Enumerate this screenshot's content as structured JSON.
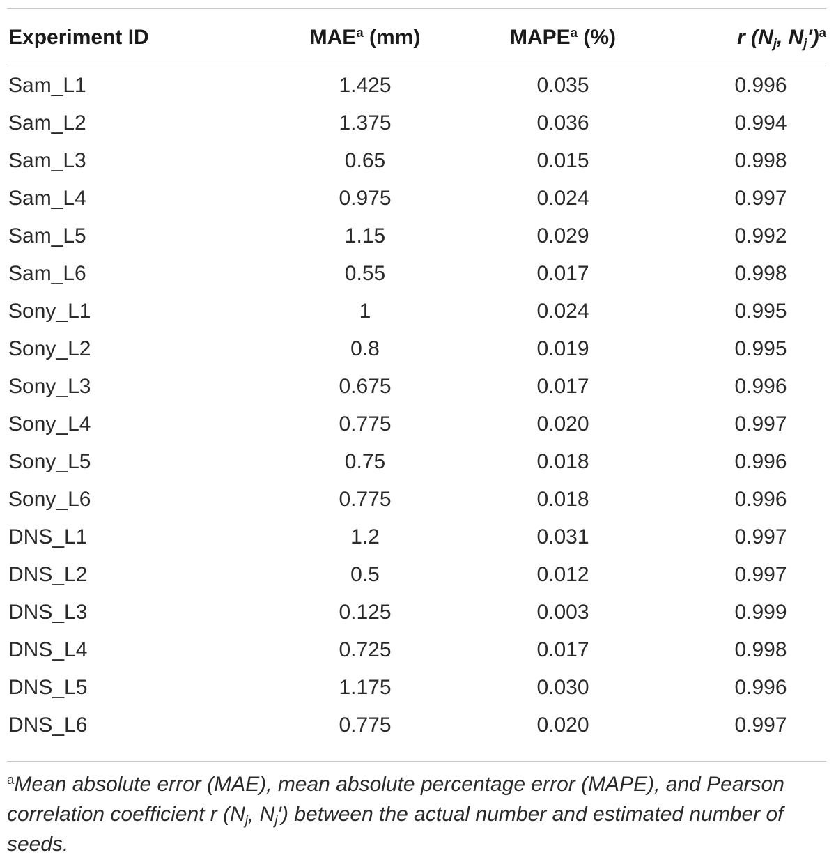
{
  "table": {
    "headers": {
      "experiment_id": "Experiment ID",
      "mae_base": "MAE",
      "mae_sup": "a",
      "mae_unit": " (mm)",
      "mape_base": "MAPE",
      "mape_sup": "a",
      "mape_unit": " (%)",
      "r_prefix": "r (N",
      "r_sub1": "j",
      "r_mid": ", N",
      "r_sub2": "j",
      "r_suffix": "′)",
      "r_sup": "a"
    },
    "rows": [
      {
        "id": "Sam_L1",
        "mae": "1.425",
        "mape": "0.035",
        "r": "0.996"
      },
      {
        "id": "Sam_L2",
        "mae": "1.375",
        "mape": "0.036",
        "r": "0.994"
      },
      {
        "id": "Sam_L3",
        "mae": "0.65",
        "mape": "0.015",
        "r": "0.998"
      },
      {
        "id": "Sam_L4",
        "mae": "0.975",
        "mape": "0.024",
        "r": "0.997"
      },
      {
        "id": "Sam_L5",
        "mae": "1.15",
        "mape": "0.029",
        "r": "0.992"
      },
      {
        "id": "Sam_L6",
        "mae": "0.55",
        "mape": "0.017",
        "r": "0.998"
      },
      {
        "id": "Sony_L1",
        "mae": "1",
        "mape": "0.024",
        "r": "0.995"
      },
      {
        "id": "Sony_L2",
        "mae": "0.8",
        "mape": "0.019",
        "r": "0.995"
      },
      {
        "id": "Sony_L3",
        "mae": "0.675",
        "mape": "0.017",
        "r": "0.996"
      },
      {
        "id": "Sony_L4",
        "mae": "0.775",
        "mape": "0.020",
        "r": "0.997"
      },
      {
        "id": "Sony_L5",
        "mae": "0.75",
        "mape": "0.018",
        "r": "0.996"
      },
      {
        "id": "Sony_L6",
        "mae": "0.775",
        "mape": "0.018",
        "r": "0.996"
      },
      {
        "id": "DNS_L1",
        "mae": "1.2",
        "mape": "0.031",
        "r": "0.997"
      },
      {
        "id": "DNS_L2",
        "mae": "0.5",
        "mape": "0.012",
        "r": "0.997"
      },
      {
        "id": "DNS_L3",
        "mae": "0.125",
        "mape": "0.003",
        "r": "0.999"
      },
      {
        "id": "DNS_L4",
        "mae": "0.725",
        "mape": "0.017",
        "r": "0.998"
      },
      {
        "id": "DNS_L5",
        "mae": "1.175",
        "mape": "0.030",
        "r": "0.996"
      },
      {
        "id": "DNS_L6",
        "mae": "0.775",
        "mape": "0.020",
        "r": "0.997"
      }
    ]
  },
  "footnote": {
    "mark": "a",
    "text_1": "Mean absolute error (MAE), mean absolute percentage error (MAPE), and Pearson correlation coefficient r (N",
    "sub_1": "j",
    "text_2": ", N",
    "sub_2": "j",
    "text_3": "′) between the actual number and estimated number of seeds."
  }
}
